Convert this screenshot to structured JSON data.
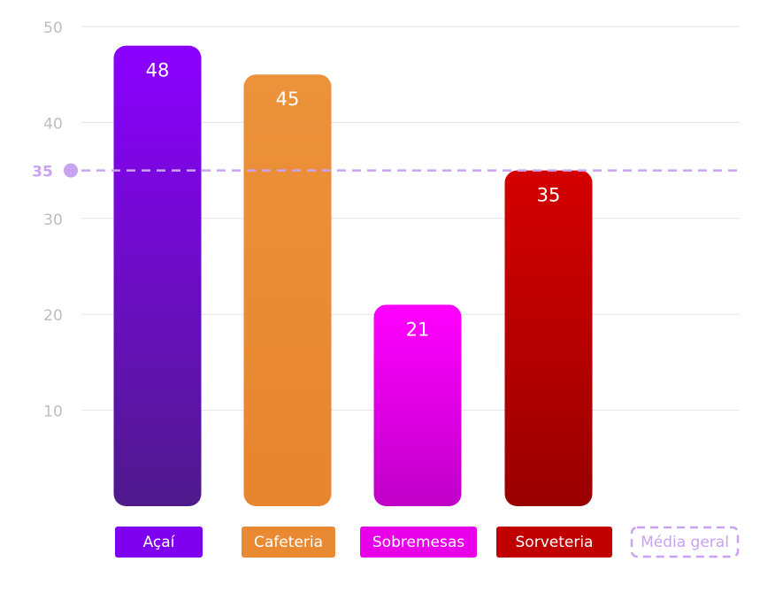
{
  "chart_data": {
    "type": "bar",
    "categories": [
      "Açaí",
      "Cafeteria",
      "Sobremesas",
      "Sorveteria"
    ],
    "values": [
      48,
      45,
      21,
      35
    ],
    "data_labels": [
      "48",
      "45",
      "21",
      "35"
    ],
    "ylim": [
      0,
      50
    ],
    "yticks": [
      10,
      20,
      30,
      40,
      50
    ],
    "ytick_labels": [
      "10",
      "20",
      "30",
      "40",
      "50"
    ],
    "grid": true,
    "reference_line": {
      "value": 35,
      "label": "35",
      "legend_label": "Média geral",
      "style": "dashed",
      "color": "#c9a3f2"
    },
    "legend": {
      "position": "bottom",
      "items": [
        "Açaí",
        "Cafeteria",
        "Sobremesas",
        "Sorveteria",
        "Média geral"
      ]
    },
    "colors": [
      {
        "top": "#8b00ff",
        "bottom": "#4e1a8c"
      },
      {
        "top": "#eb923b",
        "bottom": "#e8852f"
      },
      {
        "top": "#ff00ff",
        "bottom": "#c000c8"
      },
      {
        "top": "#d40000",
        "bottom": "#990000"
      }
    ],
    "legend_colors": [
      "#7f00ee",
      "#e98a33",
      "#e800e8",
      "#c00000"
    ]
  }
}
